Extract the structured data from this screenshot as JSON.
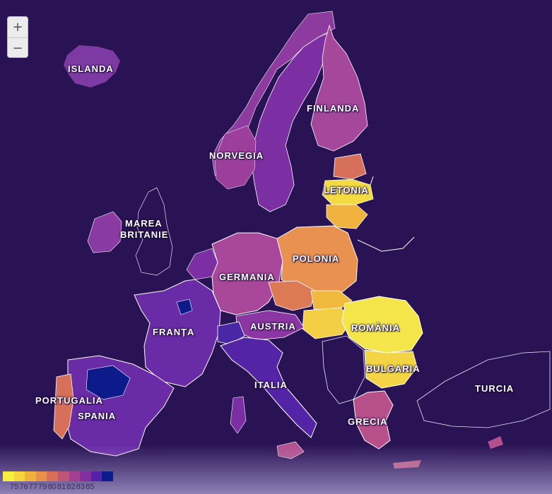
{
  "zoom": {
    "in_label": "+",
    "out_label": "−"
  },
  "labels": {
    "islanda": "ISLANDA",
    "finlanda": "FINLANDA",
    "norvegia": "NORVEGIA",
    "letonia": "LETONIA",
    "marea_britanie_1": "MAREA",
    "marea_britanie_2": "BRITANIE",
    "polonia": "POLONIA",
    "germania": "GERMANIA",
    "austria": "AUSTRIA",
    "franta": "FRANȚA",
    "romania": "ROMÂNIA",
    "bulgaria": "BULGARIA",
    "italia": "ITALIA",
    "turcia": "TURCIA",
    "portugalia": "PORTUGALIA",
    "spania": "SPANIA",
    "grecia": "GRECIA"
  },
  "legend": {
    "colors": [
      "#f7ef3f",
      "#f5d43c",
      "#f0b13d",
      "#e9904a",
      "#d77057",
      "#be5576",
      "#a34190",
      "#822fa0",
      "#5523a6",
      "#0d1a8a"
    ],
    "ticks": [
      "75",
      "76",
      "77",
      "79",
      "80",
      "81",
      "82",
      "83",
      "85"
    ]
  },
  "colors": {
    "background": "#2a1354",
    "border": "#ffffff"
  }
}
